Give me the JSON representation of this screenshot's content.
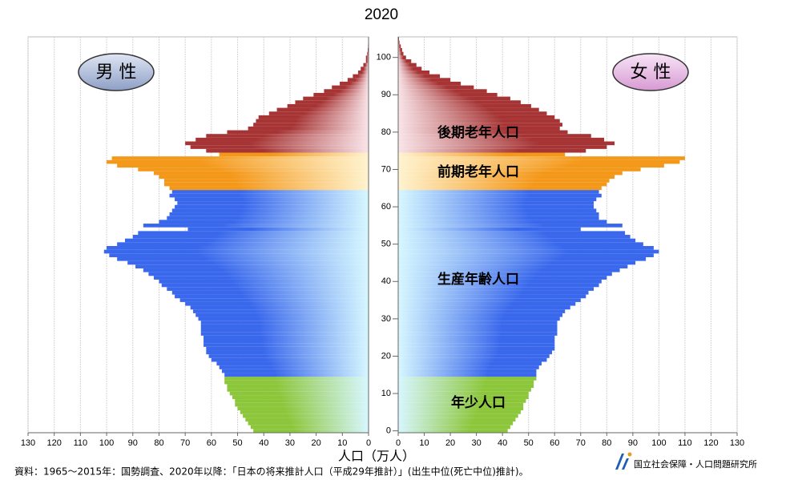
{
  "chart_data": {
    "type": "bar",
    "title": "2020",
    "categories": [
      0,
      null,
      null,
      null,
      null,
      null,
      null,
      null,
      null,
      null,
      10,
      null,
      null,
      null,
      null,
      null,
      null,
      null,
      null,
      null,
      20,
      null,
      null,
      null,
      null,
      null,
      null,
      null,
      null,
      null,
      30,
      null,
      null,
      null,
      null,
      null,
      null,
      null,
      null,
      null,
      40,
      null,
      null,
      null,
      null,
      null,
      null,
      null,
      null,
      null,
      50,
      null,
      null,
      null,
      null,
      null,
      null,
      null,
      null,
      null,
      60,
      null,
      null,
      null,
      null,
      null,
      null,
      null,
      null,
      null,
      70,
      null,
      null,
      null,
      null,
      null,
      null,
      null,
      null,
      null,
      80,
      null,
      null,
      null,
      null,
      null,
      null,
      null,
      null,
      null,
      90,
      null,
      null,
      null,
      null,
      null,
      null,
      null,
      null,
      null,
      100,
      null,
      null,
      null,
      null,
      null
    ],
    "series": [
      {
        "name": "男 性",
        "color": "#b3c1de",
        "values": [
          44,
          45,
          46,
          47,
          48,
          49,
          50,
          51,
          51,
          52,
          53,
          54,
          54,
          55,
          55,
          55,
          56,
          57,
          58,
          60,
          61,
          62,
          62,
          63,
          63,
          63,
          64,
          64,
          64,
          64,
          65,
          66,
          67,
          68,
          70,
          72,
          74,
          75,
          77,
          79,
          80,
          82,
          84,
          86,
          89,
          92,
          96,
          99,
          101,
          100,
          96,
          93,
          90,
          88,
          69,
          86,
          80,
          77,
          76,
          75,
          74,
          73,
          74,
          76,
          75,
          76,
          78,
          78,
          80,
          82,
          88,
          96,
          100,
          98,
          57,
          62,
          68,
          70,
          66,
          62,
          54,
          46,
          44,
          43,
          42,
          38,
          35,
          31,
          28,
          25,
          21,
          17,
          14,
          11,
          8,
          6,
          4,
          3,
          2,
          1,
          1,
          0.5,
          0.3,
          0.2,
          0.1,
          0.1
        ]
      },
      {
        "name": "女 性",
        "color": "#e9bde6",
        "values": [
          42,
          43,
          44,
          45,
          46,
          47,
          48,
          48,
          49,
          50,
          50,
          51,
          52,
          52,
          53,
          53,
          53,
          54,
          55,
          57,
          58,
          59,
          60,
          60,
          60,
          60,
          61,
          61,
          61,
          61,
          62,
          63,
          64,
          66,
          68,
          70,
          72,
          73,
          75,
          77,
          78,
          80,
          82,
          85,
          88,
          91,
          95,
          98,
          100,
          98,
          94,
          91,
          89,
          87,
          70,
          86,
          80,
          77,
          77,
          76,
          75,
          75,
          76,
          78,
          77,
          78,
          80,
          81,
          83,
          86,
          93,
          102,
          108,
          110,
          64,
          72,
          80,
          83,
          79,
          74,
          65,
          62,
          63,
          62,
          60,
          57,
          54,
          51,
          47,
          43,
          38,
          34,
          29,
          24,
          20,
          16,
          12,
          9,
          7,
          5,
          3,
          2,
          1.5,
          1,
          0.5,
          0.3
        ]
      }
    ],
    "groups": [
      {
        "label": "年少人口",
        "first_age": 0,
        "color": "#8cc63a",
        "fade": "#d6f7ff"
      },
      {
        "label": "生産年齢人口",
        "first_age": 15,
        "color": "#3a68ec",
        "fade": "#d6f7ff"
      },
      {
        "label": "前期老年人口",
        "first_age": 65,
        "color": "#f4981a",
        "fade": "#fff3cf"
      },
      {
        "label": "後期老年人口",
        "first_age": 75,
        "color": "#a63434",
        "fade": "#f9e4e8"
      }
    ],
    "xlim": [
      0,
      130
    ],
    "xticks": [
      0,
      10,
      20,
      30,
      40,
      50,
      60,
      70,
      80,
      90,
      100,
      110,
      120,
      130
    ],
    "x_label": "人口（万人）",
    "grid": true,
    "source": "資料：1965～2015年：国勢調査、2020年以降：「日本の将来推計人口（平成29年推計）」(出生中位(死亡中位)推計)。",
    "logo": "国立社会保障・人口問題研究所"
  }
}
